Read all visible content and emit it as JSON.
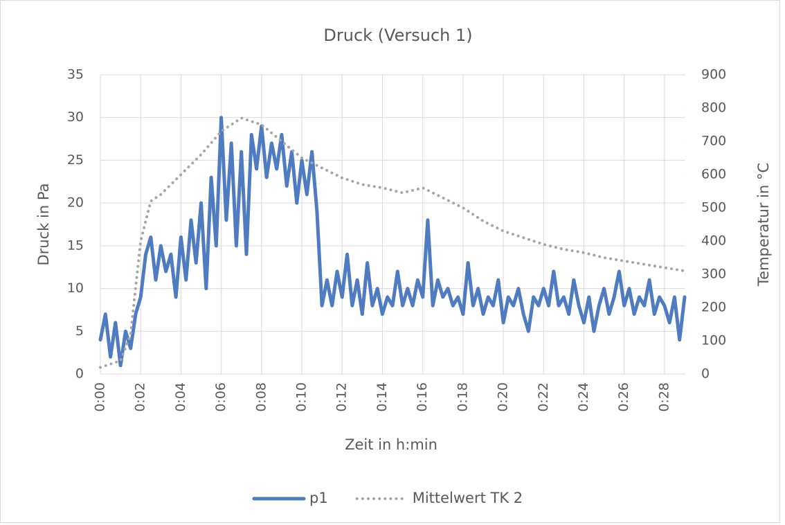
{
  "chart_data": {
    "type": "line",
    "title": "Druck (Versuch 1)",
    "x_label": "Zeit in h:min",
    "y_label": "Druck in Pa",
    "y2_label": "Temperatur in °C",
    "xlim": [
      0,
      29
    ],
    "xticks": [
      {
        "value": 0,
        "label": "0:00"
      },
      {
        "value": 2,
        "label": "0:02"
      },
      {
        "value": 4,
        "label": "0:04"
      },
      {
        "value": 6,
        "label": "0:06"
      },
      {
        "value": 8,
        "label": "0:08"
      },
      {
        "value": 10,
        "label": "0:10"
      },
      {
        "value": 12,
        "label": "0:12"
      },
      {
        "value": 14,
        "label": "0:14"
      },
      {
        "value": 16,
        "label": "0:16"
      },
      {
        "value": 18,
        "label": "0:18"
      },
      {
        "value": 20,
        "label": "0:20"
      },
      {
        "value": 22,
        "label": "0:22"
      },
      {
        "value": 24,
        "label": "0:24"
      },
      {
        "value": 26,
        "label": "0:26"
      },
      {
        "value": 28,
        "label": "0:28"
      }
    ],
    "ylim": [
      0,
      35
    ],
    "yticks": [
      0,
      5,
      10,
      15,
      20,
      25,
      30,
      35
    ],
    "y2lim": [
      0,
      900
    ],
    "y2ticks": [
      0,
      100,
      200,
      300,
      400,
      500,
      600,
      700,
      800,
      900
    ],
    "grid": true,
    "legend": "bottom",
    "series": [
      {
        "name": "p1",
        "color": "#4f7bc0",
        "style": "solid",
        "x": [
          0,
          0.25,
          0.5,
          0.75,
          1,
          1.25,
          1.5,
          1.75,
          2,
          2.25,
          2.5,
          2.75,
          3,
          3.25,
          3.5,
          3.75,
          4,
          4.25,
          4.5,
          4.75,
          5,
          5.25,
          5.5,
          5.75,
          6,
          6.25,
          6.5,
          6.75,
          7,
          7.25,
          7.5,
          7.75,
          8,
          8.25,
          8.5,
          8.75,
          9,
          9.25,
          9.5,
          9.75,
          10,
          10.25,
          10.5,
          10.75,
          11,
          11.25,
          11.5,
          11.75,
          12,
          12.25,
          12.5,
          12.75,
          13,
          13.25,
          13.5,
          13.75,
          14,
          14.25,
          14.5,
          14.75,
          15,
          15.25,
          15.5,
          15.75,
          16,
          16.25,
          16.5,
          16.75,
          17,
          17.25,
          17.5,
          17.75,
          18,
          18.25,
          18.5,
          18.75,
          19,
          19.25,
          19.5,
          19.75,
          20,
          20.25,
          20.5,
          20.75,
          21,
          21.25,
          21.5,
          21.75,
          22,
          22.25,
          22.5,
          22.75,
          23,
          23.25,
          23.5,
          23.75,
          24,
          24.25,
          24.5,
          24.75,
          25,
          25.25,
          25.5,
          25.75,
          26,
          26.25,
          26.5,
          26.75,
          27,
          27.25,
          27.5,
          27.75,
          28,
          28.25,
          28.5,
          28.75,
          29
        ],
        "values": [
          4,
          7,
          2,
          6,
          1,
          5,
          3,
          7,
          9,
          14,
          16,
          11,
          15,
          12,
          14,
          9,
          16,
          11,
          18,
          13,
          20,
          10,
          23,
          15,
          30,
          18,
          27,
          15,
          26,
          14,
          28,
          24,
          29,
          23,
          27,
          24,
          28,
          22,
          26,
          20,
          25,
          21,
          26,
          19,
          8,
          11,
          8,
          12,
          9,
          14,
          8,
          11,
          7,
          13,
          8,
          10,
          7,
          9,
          8,
          12,
          8,
          10,
          8,
          11,
          9,
          18,
          8,
          11,
          9,
          10,
          8,
          9,
          7,
          13,
          8,
          10,
          7,
          9,
          8,
          11,
          6,
          9,
          8,
          10,
          7,
          5,
          9,
          8,
          10,
          8,
          12,
          8,
          9,
          7,
          11,
          8,
          6,
          9,
          5,
          8,
          10,
          7,
          9,
          12,
          8,
          10,
          7,
          9,
          8,
          11,
          7,
          9,
          8,
          6,
          9,
          4,
          9
        ]
      },
      {
        "name": "Mittelwert TK 2",
        "color": "#a6a6a6",
        "style": "dotted",
        "axis": "y2",
        "x": [
          0,
          1,
          1.5,
          2,
          2.5,
          3,
          4,
          5,
          6,
          7,
          8,
          9,
          10,
          11,
          12,
          13,
          14,
          15,
          16,
          17,
          18,
          19,
          20,
          21,
          22,
          23,
          24,
          25,
          26,
          27,
          28,
          29
        ],
        "values": [
          20,
          40,
          120,
          400,
          520,
          540,
          600,
          660,
          730,
          770,
          750,
          700,
          650,
          620,
          590,
          570,
          560,
          545,
          560,
          530,
          500,
          460,
          430,
          410,
          390,
          375,
          365,
          350,
          340,
          330,
          320,
          310
        ]
      }
    ]
  }
}
